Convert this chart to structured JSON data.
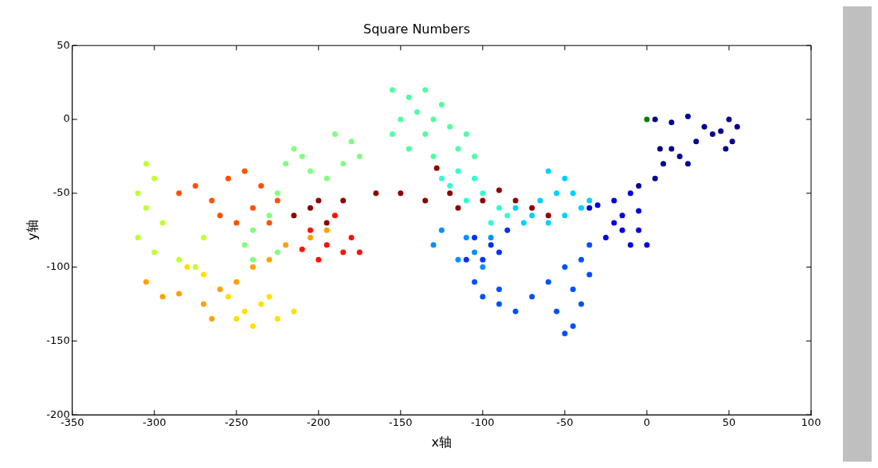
{
  "chart_data": {
    "type": "scatter",
    "title": "Square Numbers",
    "xlabel": "x轴",
    "ylabel": "y轴",
    "xlim": [
      -350,
      100
    ],
    "ylim": [
      -200,
      50
    ],
    "xticks": [
      -350,
      -300,
      -250,
      -200,
      -150,
      -100,
      -50,
      0,
      50,
      100
    ],
    "yticks": [
      -200,
      -150,
      -100,
      -50,
      0,
      50
    ],
    "grid": false,
    "marker": "circle",
    "series": [
      {
        "color": "#00008f",
        "x": [
          5,
          15,
          25,
          35,
          45,
          50,
          55,
          52,
          48,
          40,
          30,
          20,
          10,
          5,
          15,
          25,
          8,
          -5
        ],
        "values": [
          0,
          -2,
          2,
          -5,
          -8,
          0,
          -5,
          -15,
          -20,
          -10,
          -15,
          -25,
          -30,
          -40,
          -20,
          -30,
          -20,
          -45
        ]
      },
      {
        "color": "#0000e0",
        "x": [
          -10,
          -20,
          -30,
          -15,
          -5,
          -10,
          -25,
          -15,
          0,
          -20,
          -35,
          -5
        ],
        "values": [
          -50,
          -55,
          -58,
          -65,
          -75,
          -85,
          -80,
          -75,
          -85,
          -70,
          -60,
          -62
        ]
      },
      {
        "color": "#0050ff",
        "x": [
          -35,
          -40,
          -50,
          -35,
          -45,
          -40,
          -45,
          -50,
          -55,
          -60,
          -70,
          -80,
          -90,
          -100,
          -105,
          -90
        ],
        "values": [
          -85,
          -95,
          -100,
          -105,
          -115,
          -125,
          -140,
          -145,
          -130,
          -110,
          -120,
          -130,
          -125,
          -120,
          -110,
          -115
        ]
      },
      {
        "color": "#0090ff",
        "x": [
          -110,
          -125,
          -130,
          -115,
          -100,
          -105,
          -95
        ],
        "values": [
          -80,
          -75,
          -85,
          -95,
          -100,
          -90,
          -80
        ]
      },
      {
        "color": "#0030ff",
        "x": [
          -95,
          -105,
          -90,
          -100,
          -85,
          -110
        ],
        "values": [
          -85,
          -80,
          -90,
          -95,
          -75,
          -95
        ]
      },
      {
        "color": "#00d0ff",
        "x": [
          -60,
          -50,
          -45,
          -40,
          -35,
          -50,
          -60,
          -70,
          -80,
          -65,
          -55,
          -75
        ],
        "values": [
          -35,
          -40,
          -50,
          -60,
          -55,
          -65,
          -70,
          -65,
          -60,
          -55,
          -50,
          -70
        ]
      },
      {
        "color": "#30ffd0",
        "x": [
          -115,
          -125,
          -105,
          -100,
          -90,
          -95,
          -110,
          -85,
          -120
        ],
        "values": [
          -35,
          -40,
          -40,
          -50,
          -60,
          -70,
          -55,
          -65,
          -45
        ]
      },
      {
        "color": "#50ffa0",
        "x": [
          -155,
          -145,
          -135,
          -140,
          -130,
          -120,
          -125,
          -150,
          -135,
          -110,
          -105,
          -115,
          -130,
          -155,
          -145
        ],
        "values": [
          20,
          15,
          20,
          5,
          0,
          -5,
          10,
          0,
          -10,
          -10,
          -25,
          -20,
          -25,
          -10,
          -20
        ]
      },
      {
        "color": "#80ff80",
        "x": [
          -190,
          -180,
          -175,
          -185,
          -195,
          -210,
          -215,
          -220,
          -205,
          -225,
          -230,
          -240,
          -245,
          -240,
          -225
        ],
        "values": [
          -10,
          -15,
          -25,
          -30,
          -40,
          -25,
          -20,
          -30,
          -35,
          -50,
          -65,
          -75,
          -85,
          -95,
          -90
        ]
      },
      {
        "color": "#c0ff30",
        "x": [
          -305,
          -300,
          -310,
          -305,
          -295,
          -310,
          -300,
          -285,
          -270,
          -275
        ],
        "values": [
          -30,
          -40,
          -50,
          -60,
          -70,
          -80,
          -90,
          -95,
          -80,
          -100
        ]
      },
      {
        "color": "#ffe000",
        "x": [
          -280,
          -270,
          -255,
          -245,
          -235,
          -225,
          -215,
          -240,
          -250,
          -230
        ],
        "values": [
          -100,
          -105,
          -120,
          -130,
          -125,
          -135,
          -130,
          -140,
          -135,
          -120
        ]
      },
      {
        "color": "#ffa000",
        "x": [
          -305,
          -295,
          -285,
          -270,
          -260,
          -265,
          -250,
          -240,
          -230,
          -220,
          -205,
          -195
        ],
        "values": [
          -110,
          -120,
          -118,
          -125,
          -115,
          -135,
          -110,
          -100,
          -95,
          -85,
          -80,
          -75
        ]
      },
      {
        "color": "#ff5000",
        "x": [
          -285,
          -275,
          -265,
          -255,
          -245,
          -235,
          -240,
          -250,
          -230,
          -225,
          -260
        ],
        "values": [
          -50,
          -45,
          -55,
          -40,
          -35,
          -45,
          -60,
          -70,
          -70,
          -55,
          -65
        ]
      },
      {
        "color": "#ff1000",
        "x": [
          -205,
          -195,
          -185,
          -180,
          -175,
          -200,
          -190,
          -210
        ],
        "values": [
          -75,
          -85,
          -90,
          -80,
          -90,
          -95,
          -65,
          -88
        ]
      },
      {
        "color": "#8f0000",
        "x": [
          -215,
          -205,
          -200,
          -195,
          -185,
          -165,
          -150,
          -135,
          -128,
          -120,
          -115,
          -100,
          -90,
          -80,
          -70,
          -60
        ],
        "values": [
          -65,
          -60,
          -55,
          -70,
          -55,
          -50,
          -50,
          -55,
          -33,
          -50,
          -60,
          -55,
          -48,
          -55,
          -60,
          -65
        ]
      },
      {
        "color": "#008000",
        "x": [
          0
        ],
        "values": [
          0
        ]
      }
    ]
  }
}
